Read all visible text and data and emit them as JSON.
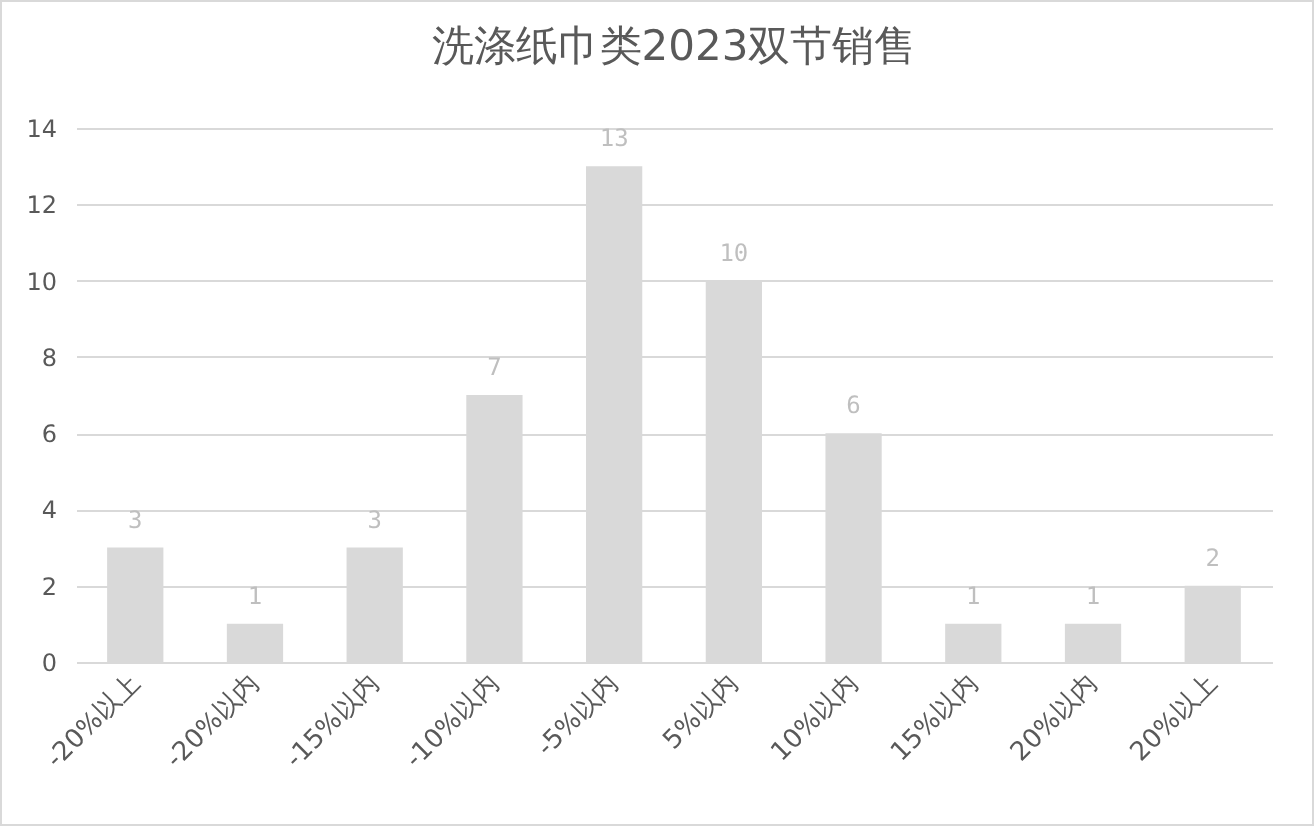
{
  "chart_data": {
    "type": "bar",
    "title": "洗涤纸巾类2023双节销售",
    "categories": [
      "-20%以上",
      "-20%以内",
      "-15%以内",
      "-10%以内",
      "-5%以内",
      "5%以内",
      "10%以内",
      "15%以内",
      "20%以内",
      "20%以上"
    ],
    "values": [
      3,
      1,
      3,
      7,
      13,
      10,
      6,
      1,
      1,
      2
    ],
    "color": "#d9d9d9",
    "ylim": [
      0,
      14
    ],
    "yticks": [
      0,
      2,
      4,
      6,
      8,
      10,
      12,
      14
    ],
    "grid": "y",
    "data_labels": true
  }
}
